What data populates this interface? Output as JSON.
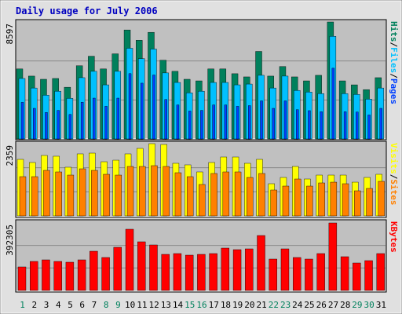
{
  "title": "Daily usage for July 2006",
  "chart_data": [
    {
      "type": "bar",
      "ylim": [
        0,
        8597
      ],
      "yticks": [
        8597
      ],
      "legend_separator": "/",
      "series": [
        {
          "name": "Hits",
          "color": "#00805c",
          "values": [
            5146,
            4620,
            4386,
            4445,
            3801,
            5380,
            6082,
            5146,
            6257,
            8012,
            7252,
            7837,
            5790,
            4971,
            4386,
            4269,
            5146,
            5146,
            4795,
            4561,
            6433,
            4620,
            5322,
            4561,
            4269,
            4678,
            8597,
            4269,
            3977,
            3626,
            4503
          ]
        },
        {
          "name": "Files",
          "color": "#00c0ff",
          "values": [
            4445,
            3743,
            3216,
            3509,
            2982,
            4503,
            4971,
            3977,
            4971,
            6667,
            5906,
            6608,
            4854,
            4152,
            3392,
            3509,
            4152,
            4152,
            3977,
            4035,
            4678,
            3743,
            4620,
            3567,
            3450,
            3333,
            7544,
            3333,
            3275,
            2924,
            3743
          ]
        },
        {
          "name": "Pages",
          "color": "#0040ff",
          "values": [
            2690,
            2250,
            1950,
            2100,
            1800,
            2700,
            3000,
            2400,
            3000,
            4800,
            4100,
            4700,
            2900,
            2500,
            2050,
            2100,
            2500,
            2500,
            2400,
            2450,
            2800,
            2250,
            2800,
            2150,
            2080,
            2000,
            5200,
            2000,
            1980,
            1760,
            2250
          ]
        }
      ]
    },
    {
      "type": "bar",
      "ylim": [
        0,
        2359
      ],
      "yticks": [
        2359
      ],
      "legend_separator": "/",
      "series": [
        {
          "name": "Visits",
          "color": "#ffff00",
          "values": [
            1846,
            1744,
            1974,
            1949,
            1590,
            2026,
            2051,
            1769,
            1820,
            2026,
            2205,
            2359,
            2333,
            1718,
            1667,
            1436,
            1744,
            1923,
            1923,
            1718,
            1846,
            1051,
            1256,
            1615,
            1205,
            1333,
            1333,
            1333,
            1102,
            1256,
            1359
          ]
        },
        {
          "name": "Sites",
          "color": "#ff8000",
          "values": [
            1282,
            1282,
            1487,
            1436,
            1333,
            1538,
            1487,
            1359,
            1333,
            1615,
            1615,
            1641,
            1615,
            1410,
            1282,
            1026,
            1385,
            1436,
            1436,
            1256,
            1385,
            846,
            974,
            1205,
            974,
            1077,
            1102,
            1051,
            820,
            897,
            1128
          ]
        }
      ]
    },
    {
      "type": "bar",
      "ylim": [
        0,
        392305
      ],
      "yticks": [
        392305
      ],
      "categories": [
        "1",
        "2",
        "3",
        "4",
        "5",
        "6",
        "7",
        "8",
        "9",
        "10",
        "11",
        "12",
        "13",
        "14",
        "15",
        "16",
        "17",
        "18",
        "19",
        "20",
        "21",
        "22",
        "23",
        "24",
        "25",
        "26",
        "27",
        "28",
        "29",
        "30",
        "31"
      ],
      "category_colors": [
        "#00805c",
        "#000000",
        "#000000",
        "#000000",
        "#000000",
        "#000000",
        "#000000",
        "#00805c",
        "#00805c",
        "#000000",
        "#000000",
        "#000000",
        "#000000",
        "#000000",
        "#00805c",
        "#00805c",
        "#000000",
        "#000000",
        "#000000",
        "#000000",
        "#000000",
        "#00805c",
        "#00805c",
        "#000000",
        "#000000",
        "#000000",
        "#000000",
        "#000000",
        "#00805c",
        "#00805c",
        "#000000"
      ],
      "series": [
        {
          "name": "KBytes",
          "color": "#ff0000",
          "values": [
            136860,
            168794,
            177918,
            168794,
            164232,
            177918,
            228100,
            191604,
            250910,
            355836,
            282844,
            264596,
            209852,
            214414,
            205290,
            209852,
            214414,
            246348,
            237224,
            241786,
            319340,
            182480,
            241786,
            191604,
            182480,
            214414,
            392305,
            196166,
            159670,
            173356,
            214414
          ]
        }
      ]
    }
  ]
}
